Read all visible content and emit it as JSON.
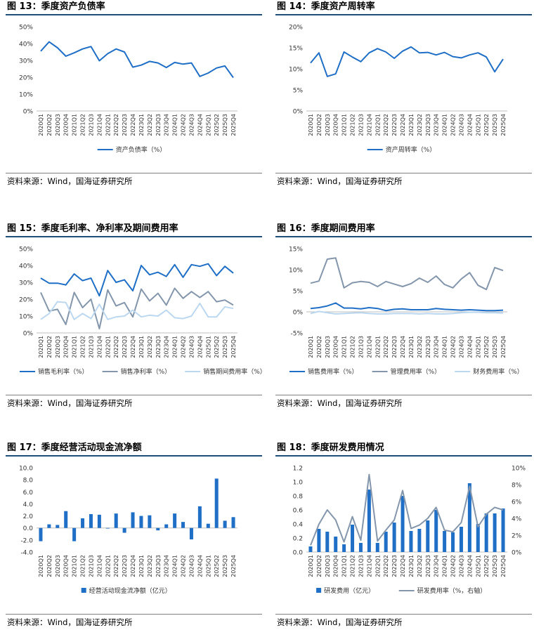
{
  "source_text": "资料来源：Wind，国海证券研究所",
  "quarters": [
    "2020Q1",
    "2020Q2",
    "2020Q3",
    "2020Q4",
    "2021Q1",
    "2021Q2",
    "2021Q3",
    "2021Q4",
    "2022Q1",
    "2022Q2",
    "2022Q3",
    "2022Q4",
    "2023Q1",
    "2023Q2",
    "2023Q3",
    "2023Q4",
    "2024Q1",
    "2024Q2",
    "2024Q3",
    "2024Q4",
    "2025Q1",
    "2025Q2",
    "2025Q3",
    "2025Q4"
  ],
  "colors": {
    "dark_blue": "#1f6fc6",
    "gray": "#8496ab",
    "light_blue": "#bcd8f0",
    "bar_blue": "#1f6fc6"
  },
  "chart_data": [
    {
      "id": "fig13",
      "type": "line",
      "title": "图 13：季度资产负债率",
      "ylim": [
        0,
        50
      ],
      "yticks": [
        "0%",
        "10%",
        "20%",
        "30%",
        "40%",
        "50%"
      ],
      "series": [
        {
          "name": "资产负债率（%）",
          "color": "#1f6fc6",
          "values": [
            35.5,
            41.0,
            37.5,
            32.5,
            34.5,
            36.8,
            38.2,
            29.8,
            34.0,
            36.8,
            35.0,
            26.0,
            27.2,
            29.4,
            28.5,
            25.8,
            28.8,
            27.8,
            28.5,
            20.5,
            22.5,
            25.5,
            26.7,
            19.8
          ]
        }
      ]
    },
    {
      "id": "fig14",
      "type": "line",
      "title": "图 14：季度资产周转率",
      "ylim": [
        0,
        20
      ],
      "yticks": [
        "0%",
        "5%",
        "10%",
        "15%",
        "20%"
      ],
      "series": [
        {
          "name": "资产周转率（%）",
          "color": "#1f6fc6",
          "values": [
            11.4,
            13.8,
            8.2,
            8.8,
            14.0,
            12.8,
            11.7,
            13.8,
            14.8,
            14.0,
            12.5,
            14.2,
            15.2,
            13.8,
            13.9,
            13.3,
            13.9,
            12.9,
            12.6,
            13.3,
            13.8,
            12.8,
            9.3,
            12.3
          ]
        }
      ]
    },
    {
      "id": "fig15",
      "type": "line",
      "title": "图 15：季度毛利率、净利率及期间费用率",
      "ylim": [
        0,
        50
      ],
      "yticks": [
        "0%",
        "10%",
        "20%",
        "30%",
        "40%",
        "50%"
      ],
      "series": [
        {
          "name": "销售毛利率（%）",
          "color": "#1f6fc6",
          "values": [
            32.5,
            29.5,
            29.5,
            28.5,
            35.0,
            31.0,
            32.5,
            22.0,
            37.0,
            30.0,
            31.5,
            25.0,
            40.0,
            34.5,
            36.0,
            33.5,
            40.5,
            33.0,
            40.5,
            39.5,
            41.0,
            34.0,
            39.5,
            35.5
          ]
        },
        {
          "name": "销售净利率（%）",
          "color": "#8496ab",
          "values": [
            24.0,
            13.0,
            14.0,
            5.0,
            24.0,
            15.0,
            20.0,
            2.5,
            25.5,
            16.0,
            18.0,
            9.5,
            26.0,
            19.0,
            23.5,
            16.5,
            26.5,
            20.5,
            24.5,
            21.0,
            24.5,
            18.5,
            19.5,
            16.5
          ]
        },
        {
          "name": "销售期间费用率（%）",
          "color": "#bcd8f0",
          "values": [
            8.0,
            11.5,
            18.5,
            18.0,
            8.0,
            11.5,
            8.5,
            17.0,
            8.0,
            9.5,
            10.0,
            13.5,
            9.5,
            10.5,
            10.0,
            13.5,
            9.0,
            8.5,
            10.0,
            17.5,
            9.5,
            9.5,
            15.5,
            14.5
          ]
        }
      ]
    },
    {
      "id": "fig16",
      "type": "line",
      "title": "图 16：季度期间费用率",
      "ylim": [
        -5,
        15
      ],
      "yticks": [
        "-5%",
        "0%",
        "5%",
        "10%",
        "15%"
      ],
      "series": [
        {
          "name": "销售费用率（%）",
          "color": "#1f6fc6",
          "values": [
            0.8,
            1.0,
            1.4,
            2.1,
            0.9,
            0.9,
            0.7,
            1.0,
            0.8,
            0.3,
            0.6,
            0.7,
            0.5,
            0.5,
            0.5,
            0.8,
            0.6,
            0.5,
            0.4,
            0.5,
            0.4,
            0.3,
            0.3,
            0.4
          ]
        },
        {
          "name": "管理费用率（%）",
          "color": "#8496ab",
          "values": [
            6.8,
            7.3,
            12.5,
            12.8,
            5.7,
            6.9,
            7.2,
            7.0,
            6.0,
            7.2,
            6.6,
            6.0,
            6.7,
            8.0,
            7.0,
            8.5,
            6.5,
            5.7,
            7.8,
            9.3,
            6.3,
            5.3,
            10.5,
            9.8
          ]
        },
        {
          "name": "财务费用率（%）",
          "color": "#bcd8f0",
          "values": [
            -0.4,
            0.1,
            -0.2,
            -0.5,
            -0.4,
            -0.3,
            -0.2,
            -0.4,
            -0.5,
            -0.5,
            -0.4,
            -0.4,
            -0.4,
            -0.5,
            -0.4,
            -0.5,
            -0.5,
            -0.4,
            -0.2,
            -0.1,
            -0.1,
            -0.2,
            -0.2,
            -0.3
          ]
        }
      ]
    },
    {
      "id": "fig17",
      "type": "bar",
      "title": "图 17：季度经营活动现金流净额",
      "ylim": [
        -4,
        10
      ],
      "yticks": [
        "-4.0",
        "-2.0",
        "0.0",
        "2.0",
        "4.0",
        "6.0",
        "8.0",
        "10.0"
      ],
      "series": [
        {
          "name": "经营活动现金流净额（亿元）",
          "color": "#1f6fc6",
          "values": [
            -2.2,
            0.6,
            0.5,
            2.8,
            -2.2,
            1.6,
            2.3,
            2.2,
            -0.1,
            2.4,
            -0.8,
            2.6,
            2.0,
            2.1,
            -0.4,
            0.6,
            2.4,
            1.0,
            -1.9,
            3.6,
            0.7,
            8.2,
            1.2,
            1.8
          ]
        }
      ]
    },
    {
      "id": "fig18",
      "type": "bar_line",
      "title": "图 18：季度研发费用情况",
      "ylim": [
        0,
        1.2
      ],
      "yticks": [
        "0.0",
        "0.2",
        "0.4",
        "0.6",
        "0.8",
        "1.0",
        "1.2"
      ],
      "y2lim": [
        0,
        10
      ],
      "y2ticks": [
        "0%",
        "2%",
        "4%",
        "6%",
        "8%",
        "10%"
      ],
      "series": [
        {
          "name": "研发费用（亿元）",
          "color": "#1f6fc6",
          "kind": "bar",
          "axis": "left",
          "values": [
            0.08,
            0.33,
            0.29,
            0.22,
            0.11,
            0.39,
            0.13,
            0.89,
            0.13,
            0.29,
            0.42,
            0.8,
            0.3,
            0.33,
            0.45,
            0.6,
            0.3,
            0.28,
            0.36,
            0.98,
            0.4,
            0.55,
            0.55,
            0.62
          ]
        },
        {
          "name": "研发费用率（%，右轴）",
          "color": "#8496ab",
          "kind": "line",
          "axis": "right",
          "values": [
            0.8,
            3.3,
            5.0,
            3.8,
            1.2,
            4.2,
            1.4,
            9.2,
            1.3,
            2.6,
            3.8,
            7.3,
            2.8,
            3.2,
            4.0,
            5.3,
            2.6,
            2.4,
            3.5,
            7.8,
            3.0,
            4.5,
            5.3,
            5.0
          ]
        }
      ]
    }
  ]
}
